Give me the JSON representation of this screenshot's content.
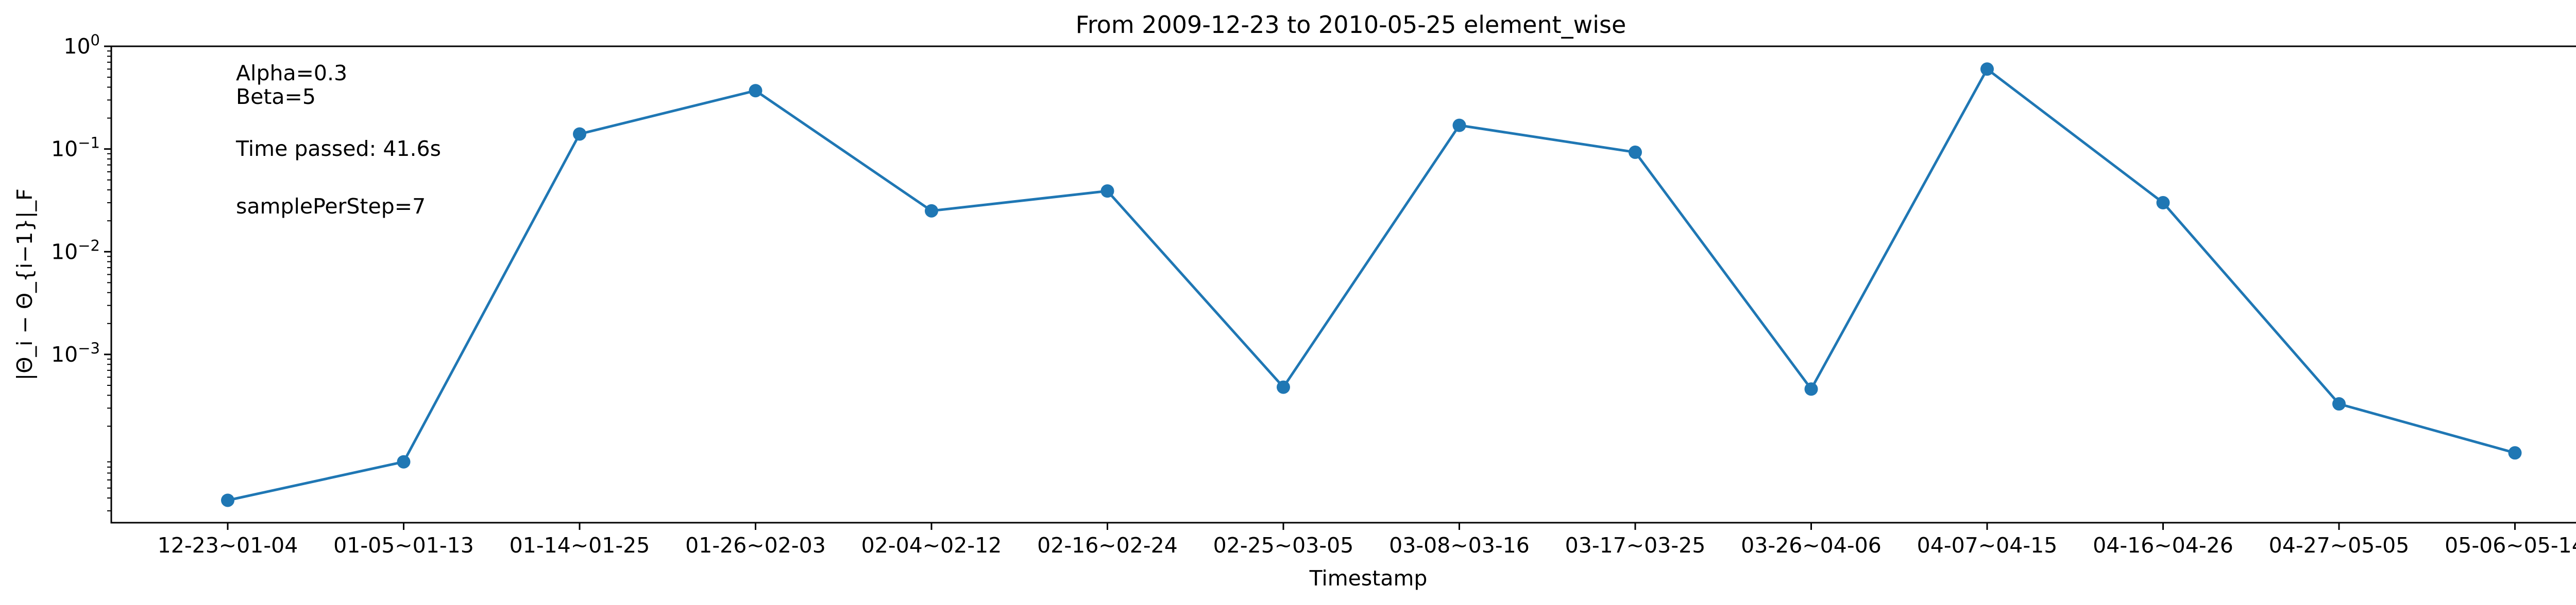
{
  "chart_data": {
    "type": "line",
    "title": "From 2009-12-23 to 2010-05-25 element_wise",
    "xlabel": "Timestamp",
    "ylabel": "|Θ_i − Θ_{i−1}|_F",
    "yscale": "log",
    "ylim": [
      2.3e-05,
      1
    ],
    "yticks": [
      {
        "value": 0.001,
        "base": "10",
        "exp": "−3"
      },
      {
        "value": 0.01,
        "base": "10",
        "exp": "−2"
      },
      {
        "value": 0.1,
        "base": "10",
        "exp": "−1"
      },
      {
        "value": 1,
        "base": "10",
        "exp": "0"
      }
    ],
    "grid": false,
    "color": "#1f77b4",
    "categories": [
      "12-23~01-04",
      "01-05~01-13",
      "01-14~01-25",
      "01-26~02-03",
      "02-04~02-12",
      "02-16~02-24",
      "02-25~03-05",
      "03-08~03-16",
      "03-17~03-25",
      "03-26~04-06",
      "04-07~04-15",
      "04-16~04-26",
      "04-27~05-05",
      "05-06~05-14"
    ],
    "values": [
      3.8e-05,
      9e-05,
      0.14,
      0.37,
      0.025,
      0.039,
      0.00048,
      0.17,
      0.093,
      0.00046,
      0.6,
      0.03,
      0.00033,
      0.00011
    ],
    "annotations": [
      "Alpha=0.3",
      "Beta=5",
      "Time passed: 41.6s",
      "samplePerStep=7"
    ]
  }
}
